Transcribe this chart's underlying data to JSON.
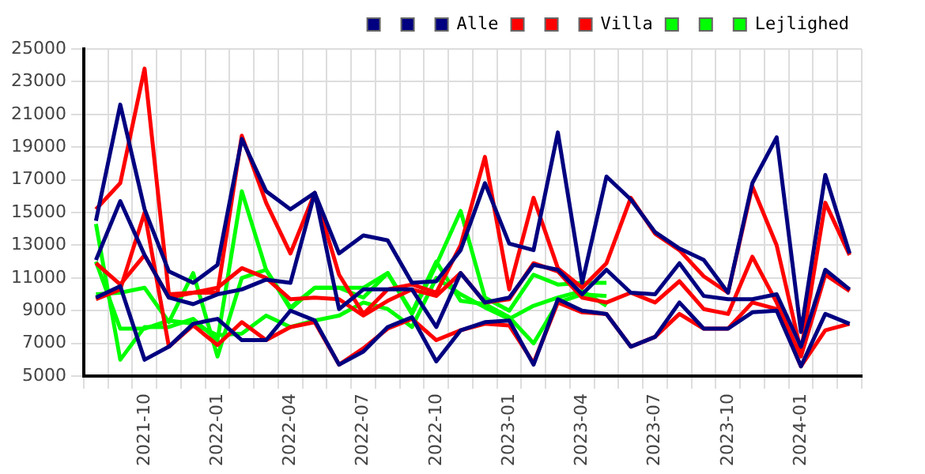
{
  "chart_data": {
    "type": "line",
    "categories": [
      null,
      null,
      "2021-10",
      null,
      null,
      "2022-01",
      null,
      null,
      "2022-04",
      null,
      null,
      "2022-07",
      null,
      null,
      "2022-10",
      null,
      null,
      "2023-01",
      null,
      null,
      "2023-04",
      null,
      null,
      "2023-07",
      null,
      null,
      "2023-10",
      null,
      null,
      "2024-01",
      null,
      null
    ],
    "series": [
      {
        "color": "#000080",
        "values": [
          14500,
          21600,
          15200,
          11400,
          10700,
          11800,
          19500,
          16300,
          15200,
          16200,
          12500,
          13600,
          13300,
          10700,
          10800,
          12700,
          16800,
          13100,
          12700,
          19900,
          10700,
          17200,
          15800,
          13800,
          12800,
          12100,
          10100,
          16800,
          19600,
          7700,
          17300,
          12500
        ]
      },
      {
        "color": "#000080",
        "values": [
          12100,
          15700,
          12400,
          9800,
          9400,
          10000,
          10300,
          10900,
          10700,
          16200,
          9100,
          10300,
          10300,
          10300,
          8000,
          11300,
          9500,
          9800,
          11800,
          11500,
          10000,
          11500,
          10100,
          10000,
          11900,
          9900,
          9700,
          9700,
          10000,
          6800,
          11500,
          10300
        ]
      },
      {
        "name": "Alle",
        "color": "#000080",
        "values": [
          9800,
          10500,
          6000,
          6800,
          8200,
          8500,
          7200,
          7200,
          9000,
          8400,
          5700,
          6500,
          8000,
          8600,
          5900,
          7800,
          8300,
          8400,
          5700,
          9700,
          9000,
          8800,
          6800,
          7400,
          9500,
          7900,
          7900,
          8900,
          9000,
          5600,
          8800,
          8200
        ]
      },
      {
        "color": "#ff0000",
        "values": [
          15200,
          16800,
          23800,
          10000,
          10100,
          10100,
          19700,
          15600,
          12500,
          16200,
          11200,
          8800,
          10300,
          10600,
          10100,
          13000,
          18400,
          10300,
          15900,
          11600,
          10400,
          11900,
          15900,
          13700,
          12700,
          11100,
          10100,
          16600,
          13000,
          6500,
          15600,
          12400
        ]
      },
      {
        "color": "#ff0000",
        "values": [
          11900,
          10600,
          12400,
          9800,
          10100,
          10400,
          11600,
          11000,
          9700,
          9800,
          9700,
          8700,
          9600,
          10300,
          9900,
          11300,
          9500,
          9700,
          11900,
          11400,
          9800,
          9500,
          10100,
          9500,
          10800,
          9100,
          8800,
          12300,
          9500,
          6200,
          11200,
          10200
        ]
      },
      {
        "name": "Villa",
        "color": "#ff0000",
        "values": [
          9700,
          10300,
          15000,
          6800,
          8100,
          6900,
          8300,
          7200,
          8000,
          8300,
          5700,
          6700,
          7900,
          8500,
          7200,
          7800,
          8200,
          8100,
          5800,
          9500,
          8900,
          8800,
          6800,
          7400,
          8800,
          7900,
          7900,
          9500,
          9100,
          5600,
          7800,
          8200
        ]
      },
      {
        "color": "#00ff00",
        "values": [
          14300,
          6000,
          8000,
          8000,
          8500,
          7200,
          16300,
          11500,
          9200,
          10400,
          10400,
          10400,
          11300,
          8800,
          11800,
          15100,
          9800,
          9000,
          11200,
          10600,
          10700,
          10700,
          null,
          null,
          null,
          null,
          null,
          null,
          null,
          null,
          null,
          null
        ]
      },
      {
        "color": "#00ff00",
        "values": [
          10000,
          10100,
          10400,
          8300,
          11300,
          6200,
          11000,
          11500,
          9100,
          10400,
          10400,
          9800,
          11300,
          8900,
          12000,
          9600,
          9400,
          8600,
          7000,
          9500,
          10000,
          9900,
          null,
          null,
          null,
          null,
          null,
          null,
          null,
          null,
          null,
          null
        ]
      },
      {
        "name": "Lejlighed",
        "color": "#00ff00",
        "values": [
          12000,
          7900,
          7900,
          8400,
          8200,
          7500,
          7600,
          8700,
          8000,
          8400,
          8700,
          9500,
          9100,
          8000,
          11000,
          10000,
          9200,
          8500,
          9300,
          9800,
          10200,
          9300,
          null,
          null,
          null,
          null,
          null,
          null,
          null,
          null,
          null,
          null
        ]
      }
    ],
    "ylim": [
      5000,
      25000
    ],
    "yticks": [
      5000,
      7000,
      9000,
      11000,
      13000,
      15000,
      17000,
      19000,
      21000,
      23000,
      25000
    ],
    "grid": true,
    "legend": "top right",
    "marker": "none",
    "line_style": "solid"
  }
}
